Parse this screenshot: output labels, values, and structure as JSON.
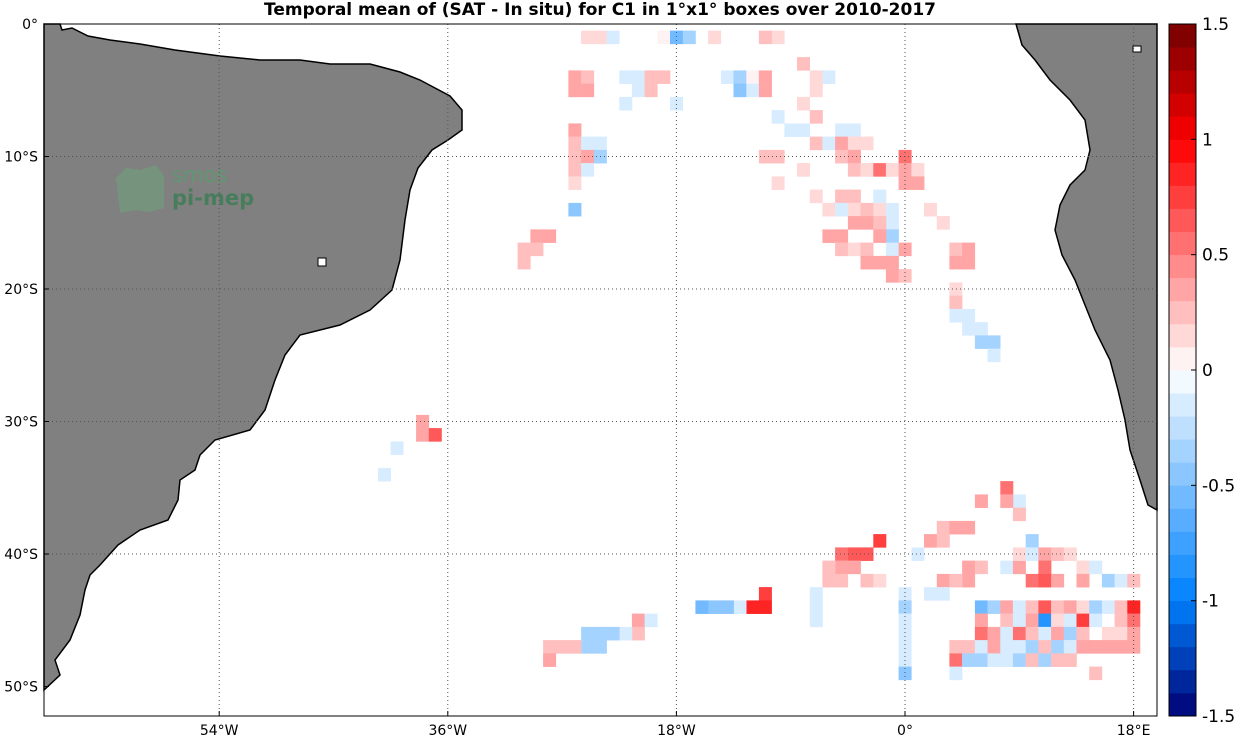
{
  "title": "Temporal mean of (SAT - In situ) for C1 in 1°x1° boxes over 2010-2017",
  "logo": {
    "line1": "smos",
    "line2": "pi-mep"
  },
  "axes": {
    "x_ticks": [
      {
        "value": -54,
        "label": "54°W"
      },
      {
        "value": -36,
        "label": "36°W"
      },
      {
        "value": -18,
        "label": "18°W"
      },
      {
        "value": 0,
        "label": "0°"
      },
      {
        "value": 18,
        "label": "18°E"
      }
    ],
    "y_ticks": [
      {
        "value": 0,
        "label": "0°"
      },
      {
        "value": -10,
        "label": "10°S"
      },
      {
        "value": -20,
        "label": "20°S"
      },
      {
        "value": -30,
        "label": "30°S"
      },
      {
        "value": -40,
        "label": "40°S"
      },
      {
        "value": -50,
        "label": "50°S"
      }
    ],
    "lon_range": [
      -71,
      19
    ],
    "lat_range": [
      -50,
      0
    ],
    "grid": true
  },
  "colorbar": {
    "range": [
      -1.5,
      1.5
    ],
    "ticks": [
      {
        "value": 1.5,
        "label": "1.5"
      },
      {
        "value": 1,
        "label": "1"
      },
      {
        "value": 0.5,
        "label": "0.5"
      },
      {
        "value": 0,
        "label": "0"
      },
      {
        "value": -0.5,
        "label": "-0.5"
      },
      {
        "value": -1,
        "label": "-1"
      },
      {
        "value": -1.5,
        "label": "-1.5"
      }
    ],
    "levels": 30
  },
  "colors": {
    "land": "#808080",
    "coast": "#000000",
    "grid": "#555555",
    "negative": "#0000ff",
    "positive": "#e00000"
  },
  "chart_data": {
    "type": "heatmap",
    "cell_size_deg": 1,
    "cells": [
      [
        -25,
        1,
        0.1
      ],
      [
        -24,
        1,
        0.1
      ],
      [
        -23,
        1,
        -0.1
      ],
      [
        -19,
        1,
        0.0
      ],
      [
        -18,
        1,
        -0.6
      ],
      [
        -17,
        1,
        -0.3
      ],
      [
        -15,
        1,
        0.1
      ],
      [
        -10,
        1,
        0.1
      ],
      [
        -11,
        1,
        0.2
      ],
      [
        -26,
        4,
        0.3
      ],
      [
        -25,
        4,
        0.2
      ],
      [
        -26,
        5,
        0.3
      ],
      [
        -25,
        5,
        0.3
      ],
      [
        -22,
        4,
        -0.1
      ],
      [
        -21,
        4,
        -0.2
      ],
      [
        -20,
        4,
        0.2
      ],
      [
        -19,
        4,
        0.2
      ],
      [
        -21,
        5,
        -0.1
      ],
      [
        -20,
        5,
        0.2
      ],
      [
        -22,
        6,
        -0.1
      ],
      [
        -18,
        6,
        -0.1
      ],
      [
        -14,
        4,
        -0.1
      ],
      [
        -13,
        4,
        -0.3
      ],
      [
        -12,
        4,
        0.0
      ],
      [
        -11,
        4,
        0.3
      ],
      [
        -13,
        5,
        -0.5
      ],
      [
        -12,
        5,
        -0.2
      ],
      [
        -11,
        5,
        0.3
      ],
      [
        -8,
        3,
        0.2
      ],
      [
        -7,
        4,
        0.1
      ],
      [
        -6,
        4,
        -0.1
      ],
      [
        -7,
        5,
        0.1
      ],
      [
        -8,
        6,
        0.1
      ],
      [
        -7,
        7,
        0.2
      ],
      [
        -10,
        7,
        -0.1
      ],
      [
        -26,
        8,
        0.4
      ],
      [
        -26,
        9,
        0.2
      ],
      [
        -25,
        9,
        -0.1
      ],
      [
        -24,
        9,
        -0.1
      ],
      [
        -26,
        10,
        0.2
      ],
      [
        -25,
        10,
        0.3
      ],
      [
        -24,
        10,
        -0.3
      ],
      [
        -26,
        11,
        0.2
      ],
      [
        -25,
        11,
        -0.1
      ],
      [
        -26,
        12,
        0.1
      ],
      [
        -9,
        8,
        -0.1
      ],
      [
        -8,
        8,
        -0.1
      ],
      [
        -7,
        9,
        0.2
      ],
      [
        -6,
        9,
        -0.2
      ],
      [
        -5,
        8,
        -0.1
      ],
      [
        -4,
        8,
        -0.2
      ],
      [
        -5,
        9,
        0.4
      ],
      [
        -4,
        9,
        0.1
      ],
      [
        -3,
        9,
        0.1
      ],
      [
        -11,
        10,
        0.2
      ],
      [
        -10,
        10,
        0.2
      ],
      [
        -8,
        11,
        0.1
      ],
      [
        -5,
        10,
        0.2
      ],
      [
        -4,
        10,
        0.3
      ],
      [
        -4,
        11,
        0.2
      ],
      [
        -3,
        11,
        0.1
      ],
      [
        -2,
        11,
        0.5
      ],
      [
        -1,
        11,
        0.1
      ],
      [
        0,
        10,
        0.5
      ],
      [
        0,
        11,
        0.4
      ],
      [
        1,
        11,
        0.1
      ],
      [
        0,
        12,
        0.3
      ],
      [
        1,
        12,
        0.3
      ],
      [
        -10,
        12,
        0.1
      ],
      [
        -7,
        13,
        0.1
      ],
      [
        -6,
        14,
        0.1
      ],
      [
        -5,
        13,
        0.2
      ],
      [
        -4,
        13,
        0.2
      ],
      [
        -5,
        14,
        -0.1
      ],
      [
        -4,
        14,
        0.1
      ],
      [
        -3,
        14,
        0.2
      ],
      [
        -2,
        13,
        -0.1
      ],
      [
        -2,
        14,
        0.1
      ],
      [
        -1,
        14,
        -0.1
      ],
      [
        -1,
        15,
        -0.2
      ],
      [
        -4,
        15,
        0.3
      ],
      [
        -3,
        15,
        0.4
      ],
      [
        -2,
        15,
        0.2
      ],
      [
        -1,
        16,
        -0.4
      ],
      [
        2,
        14,
        0.1
      ],
      [
        3,
        15,
        0.1
      ],
      [
        -26,
        14,
        -0.5
      ],
      [
        -29,
        16,
        0.3
      ],
      [
        -28,
        16,
        0.3
      ],
      [
        -30,
        17,
        0.2
      ],
      [
        -29,
        17,
        0.2
      ],
      [
        -30,
        18,
        0.2
      ],
      [
        -6,
        16,
        0.3
      ],
      [
        -5,
        16,
        0.3
      ],
      [
        -5,
        17,
        0.2
      ],
      [
        -4,
        17,
        0.1
      ],
      [
        -3,
        17,
        0.2
      ],
      [
        -2,
        16,
        0.3
      ],
      [
        -1,
        17,
        -0.1
      ],
      [
        0,
        17,
        0.3
      ],
      [
        -3,
        18,
        0.4
      ],
      [
        -2,
        18,
        0.4
      ],
      [
        -1,
        18,
        0.3
      ],
      [
        -1,
        19,
        0.4
      ],
      [
        0,
        19,
        0.2
      ],
      [
        4,
        17,
        0.2
      ],
      [
        5,
        17,
        0.3
      ],
      [
        4,
        18,
        0.3
      ],
      [
        5,
        18,
        0.3
      ],
      [
        4,
        20,
        0.1
      ],
      [
        4,
        21,
        0.2
      ],
      [
        4,
        22,
        -0.2
      ],
      [
        5,
        22,
        -0.2
      ],
      [
        5,
        23,
        -0.1
      ],
      [
        6,
        23,
        -0.2
      ],
      [
        6,
        24,
        -0.3
      ],
      [
        7,
        24,
        -0.3
      ],
      [
        7,
        25,
        -0.1
      ],
      [
        -38,
        30,
        0.3
      ],
      [
        -38,
        31,
        0.3
      ],
      [
        -37,
        31,
        0.6
      ],
      [
        -40,
        32,
        -0.1
      ],
      [
        -41,
        34,
        -0.2
      ],
      [
        6,
        36,
        0.3
      ],
      [
        8,
        35,
        0.5
      ],
      [
        9,
        36,
        -0.1
      ],
      [
        8,
        36,
        0.3
      ],
      [
        9,
        37,
        0.2
      ],
      [
        3,
        38,
        0.2
      ],
      [
        4,
        38,
        0.4
      ],
      [
        5,
        38,
        0.3
      ],
      [
        2,
        39,
        0.3
      ],
      [
        3,
        39,
        0.2
      ],
      [
        1,
        40,
        -0.1
      ],
      [
        10,
        39,
        -0.4
      ],
      [
        -2,
        39,
        0.7
      ],
      [
        -3,
        40,
        0.6
      ],
      [
        -4,
        40,
        0.6
      ],
      [
        -4,
        41,
        0.4
      ],
      [
        -5,
        40,
        0.5
      ],
      [
        -5,
        41,
        0.3
      ],
      [
        -6,
        41,
        0.2
      ],
      [
        -6,
        42,
        0.2
      ],
      [
        -5,
        42,
        0.2
      ],
      [
        -3,
        42,
        0.2
      ],
      [
        -2,
        42,
        0.1
      ],
      [
        5,
        41,
        0.3
      ],
      [
        6,
        41,
        0.2
      ],
      [
        5,
        42,
        0.3
      ],
      [
        8,
        41,
        -0.2
      ],
      [
        9,
        41,
        0.3
      ],
      [
        9,
        40,
        0.1
      ],
      [
        10,
        40,
        -0.2
      ],
      [
        11,
        40,
        0.4
      ],
      [
        11,
        41,
        0.5
      ],
      [
        12,
        40,
        0.2
      ],
      [
        13,
        40,
        0.1
      ],
      [
        10,
        42,
        0.5
      ],
      [
        11,
        42,
        0.6
      ],
      [
        12,
        42,
        0.4
      ],
      [
        14,
        41,
        0.1
      ],
      [
        14,
        42,
        0.4
      ],
      [
        15,
        41,
        -0.1
      ],
      [
        16,
        42,
        -0.3
      ],
      [
        17,
        42,
        -0.2
      ],
      [
        18,
        42,
        0.2
      ],
      [
        3,
        42,
        0.4
      ],
      [
        4,
        42,
        0.2
      ],
      [
        2,
        43,
        -0.1
      ],
      [
        3,
        43,
        -0.1
      ],
      [
        0,
        43,
        -0.1
      ],
      [
        0,
        44,
        -0.3
      ],
      [
        6,
        44,
        -0.6
      ],
      [
        7,
        44,
        -0.4
      ],
      [
        8,
        44,
        0.3
      ],
      [
        9,
        44,
        -0.1
      ],
      [
        10,
        44,
        0.2
      ],
      [
        11,
        44,
        0.6
      ],
      [
        12,
        44,
        0.2
      ],
      [
        13,
        44,
        0.4
      ],
      [
        14,
        44,
        0.1
      ],
      [
        15,
        44,
        -0.4
      ],
      [
        16,
        44,
        -0.2
      ],
      [
        17,
        44,
        0.2
      ],
      [
        18,
        44,
        0.9
      ],
      [
        -11,
        43,
        0.7
      ],
      [
        -11,
        44,
        0.9
      ],
      [
        -12,
        44,
        0.9
      ],
      [
        -13,
        44,
        -0.2
      ],
      [
        -14,
        44,
        -0.5
      ],
      [
        -15,
        44,
        -0.5
      ],
      [
        -16,
        44,
        -0.6
      ],
      [
        -7,
        43,
        -0.2
      ],
      [
        -7,
        44,
        -0.2
      ],
      [
        -7,
        45,
        -0.2
      ],
      [
        -21,
        45,
        0.3
      ],
      [
        -20,
        45,
        -0.2
      ],
      [
        -21,
        46,
        0.2
      ],
      [
        -22,
        46,
        -0.1
      ],
      [
        -23,
        46,
        -0.3
      ],
      [
        -24,
        46,
        -0.4
      ],
      [
        -25,
        46,
        -0.3
      ],
      [
        -24,
        47,
        -0.3
      ],
      [
        -25,
        47,
        -0.4
      ],
      [
        -26,
        47,
        0.2
      ],
      [
        -27,
        47,
        0.2
      ],
      [
        -28,
        47,
        0.2
      ],
      [
        -28,
        48,
        0.3
      ],
      [
        0,
        45,
        -0.2
      ],
      [
        6,
        45,
        0.4
      ],
      [
        8,
        45,
        0.2
      ],
      [
        9,
        45,
        -0.2
      ],
      [
        10,
        45,
        0.3
      ],
      [
        11,
        45,
        -0.8
      ],
      [
        12,
        45,
        0.1
      ],
      [
        13,
        45,
        -0.1
      ],
      [
        14,
        45,
        0.8
      ],
      [
        15,
        45,
        -0.1
      ],
      [
        17,
        45,
        0.2
      ],
      [
        18,
        45,
        0.5
      ],
      [
        6,
        46,
        0.5
      ],
      [
        7,
        46,
        0.3
      ],
      [
        8,
        46,
        -0.2
      ],
      [
        9,
        46,
        0.5
      ],
      [
        10,
        46,
        0.2
      ],
      [
        11,
        46,
        -0.1
      ],
      [
        12,
        46,
        0.3
      ],
      [
        13,
        46,
        -0.3
      ],
      [
        14,
        46,
        0.2
      ],
      [
        16,
        46,
        0.1
      ],
      [
        17,
        46,
        0.1
      ],
      [
        18,
        46,
        0.4
      ],
      [
        0,
        46,
        -0.1
      ],
      [
        4,
        47,
        0.2
      ],
      [
        5,
        47,
        0.2
      ],
      [
        6,
        47,
        -0.2
      ],
      [
        7,
        47,
        0.3
      ],
      [
        8,
        47,
        -0.2
      ],
      [
        9,
        47,
        -0.1
      ],
      [
        10,
        47,
        -0.4
      ],
      [
        11,
        47,
        0.2
      ],
      [
        12,
        47,
        -0.3
      ],
      [
        13,
        47,
        -0.2
      ],
      [
        14,
        47,
        0.3
      ],
      [
        15,
        47,
        0.3
      ],
      [
        16,
        47,
        0.3
      ],
      [
        17,
        47,
        0.3
      ],
      [
        18,
        47,
        0.3
      ],
      [
        0,
        47,
        -0.1
      ],
      [
        0,
        48,
        -0.1
      ],
      [
        4,
        48,
        0.5
      ],
      [
        5,
        48,
        -0.3
      ],
      [
        6,
        48,
        -0.3
      ],
      [
        7,
        48,
        -0.2
      ],
      [
        8,
        48,
        -0.2
      ],
      [
        9,
        48,
        -0.3
      ],
      [
        10,
        48,
        0.2
      ],
      [
        11,
        48,
        -0.3
      ],
      [
        12,
        48,
        0.2
      ],
      [
        13,
        48,
        0.2
      ],
      [
        0,
        49,
        -0.5
      ],
      [
        4,
        49,
        -0.2
      ],
      [
        15,
        49,
        0.2
      ]
    ]
  }
}
